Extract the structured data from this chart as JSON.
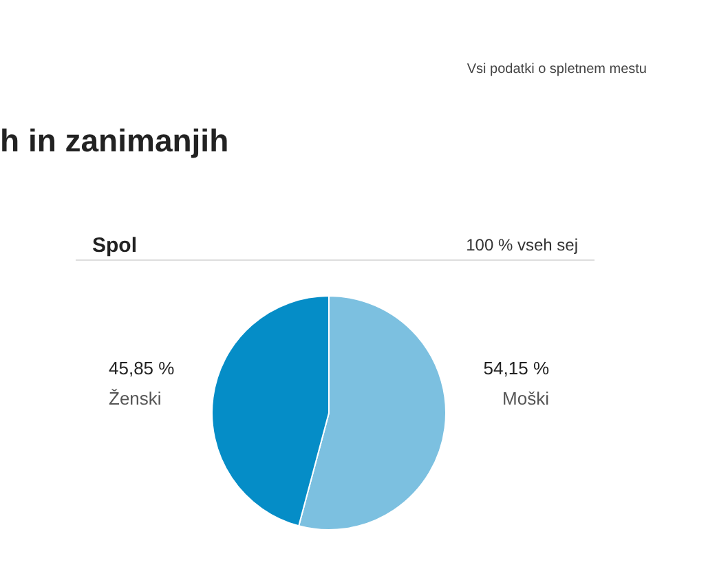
{
  "chart_data": {
    "type": "pie",
    "title": "h in zanimanjih",
    "subtitle": "Spol",
    "categories": [
      "Moški",
      "Ženski"
    ],
    "values": [
      54.15,
      45.85
    ],
    "value_labels": [
      "54,15 %",
      "45,85 %"
    ],
    "colors": [
      "#7cc0e0",
      "#058dc7"
    ],
    "annotations": [
      "100 % vseh sej",
      "Vsi podatki o spletnem mestu"
    ]
  }
}
